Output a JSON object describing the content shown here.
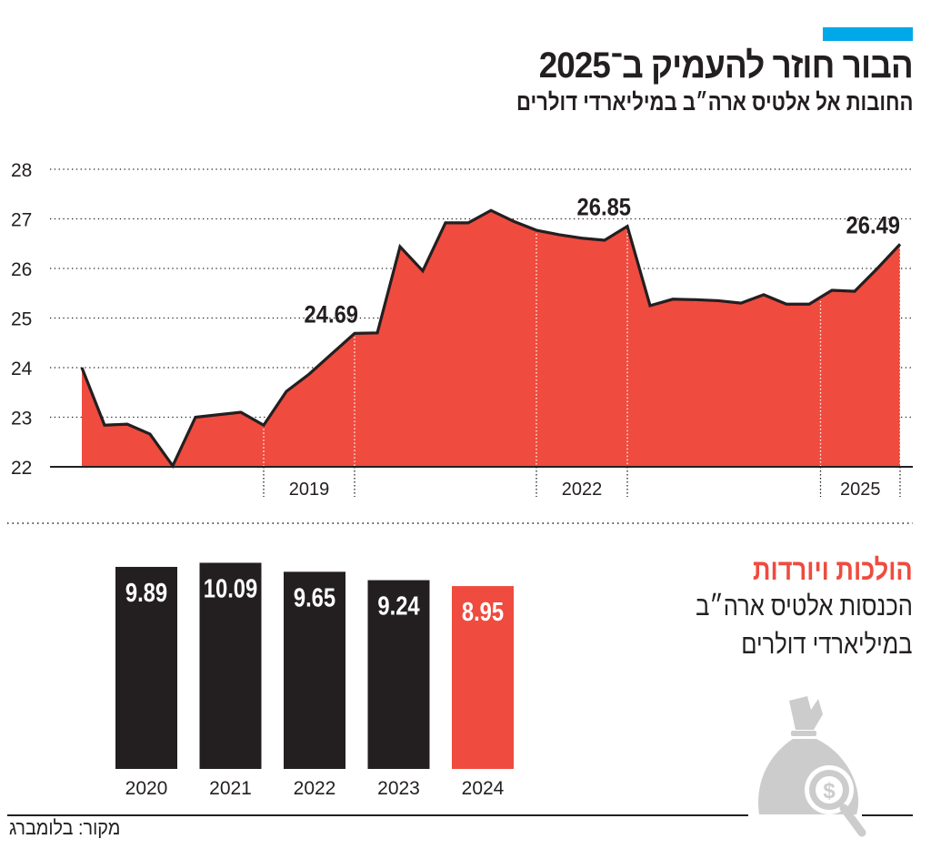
{
  "header": {
    "title": "הבור חוזר להעמיק ב־2025",
    "subtitle": "החובות אל אלטיס ארה״ב במיליארדי דולרים",
    "accent_color": "#00a8e8"
  },
  "inset": {
    "title": "הולכות ויורדות",
    "line1": "הכנסות אלטיס ארה״ב",
    "line2": "במיליארדי דולרים",
    "icon": "money-bag-magnifier-icon"
  },
  "footer": {
    "source": "מקור: בלומברג"
  },
  "colors": {
    "fill": "#ef4b3f",
    "line": "#231f20",
    "bar_dark": "#231f20",
    "bar_highlight": "#ef4b3f",
    "icon": "#cccccc"
  },
  "chart_data": [
    {
      "type": "area",
      "title": "החובות אל אלטיס ארה״ב במיליארדי דולרים",
      "ylim": [
        22,
        28
      ],
      "yticks": [
        22,
        23,
        24,
        25,
        26,
        27,
        28
      ],
      "grid": true,
      "x_unit": "quarter index",
      "x": [
        0,
        1,
        2,
        3,
        4,
        5,
        6,
        7,
        8,
        9,
        10,
        11,
        12,
        13,
        14,
        15,
        16,
        17,
        18,
        19,
        20,
        21,
        22,
        23,
        24,
        25,
        26,
        27,
        28,
        29,
        30,
        31,
        32,
        33,
        34,
        35,
        36
      ],
      "values": [
        24.0,
        22.84,
        22.86,
        22.66,
        22.02,
        23.0,
        23.05,
        23.1,
        22.84,
        23.52,
        23.87,
        24.28,
        24.69,
        24.7,
        26.44,
        25.95,
        26.92,
        26.92,
        27.17,
        26.95,
        26.77,
        26.68,
        26.61,
        26.57,
        26.85,
        25.25,
        25.38,
        25.37,
        25.35,
        25.3,
        25.47,
        25.28,
        25.28,
        25.56,
        25.54,
        26.0,
        26.49
      ],
      "year_spans": [
        {
          "label": "2019",
          "from": 8,
          "to": 12
        },
        {
          "label": "2022",
          "from": 20,
          "to": 24
        },
        {
          "label": "2025",
          "from": 32.5,
          "to": 36
        }
      ],
      "annotations": [
        {
          "index": 12,
          "text": "24.69"
        },
        {
          "index": 24,
          "text": "26.85"
        },
        {
          "index": 36,
          "text": "26.49"
        }
      ]
    },
    {
      "type": "bar",
      "categories": [
        "2020",
        "2021",
        "2022",
        "2023",
        "2024"
      ],
      "values": [
        9.89,
        10.09,
        9.65,
        9.24,
        8.95
      ],
      "labels": [
        "9.89",
        "10.09",
        "9.65",
        "9.24",
        "8.95"
      ],
      "highlight": "2024"
    }
  ]
}
